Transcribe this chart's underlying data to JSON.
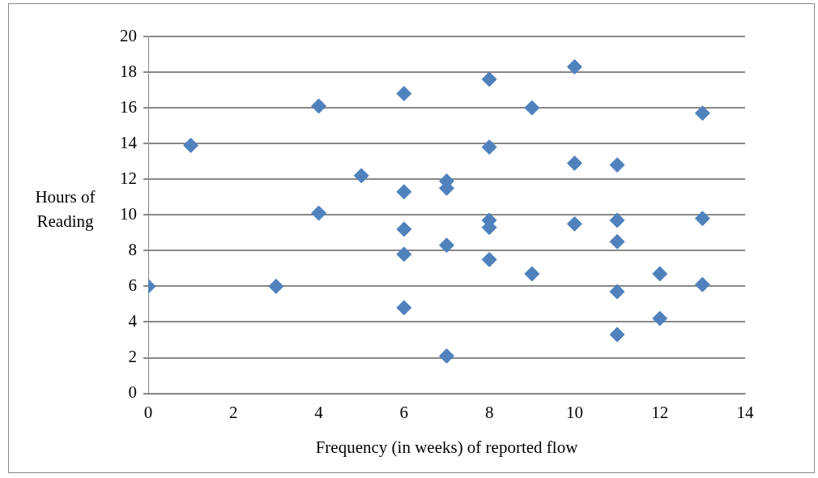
{
  "chart_data": {
    "type": "scatter",
    "xlabel": "Frequency (in weeks) of reported flow",
    "ylabel": "Hours of Reading",
    "x": [
      0,
      1,
      3,
      4,
      4,
      5,
      6,
      6,
      6,
      6,
      6,
      7,
      7,
      7,
      7,
      8,
      8,
      8,
      8,
      8,
      9,
      9,
      10,
      10,
      10,
      11,
      11,
      11,
      11,
      11,
      12,
      12,
      13,
      13,
      13
    ],
    "series": [
      {
        "color": "#4f81bd",
        "values": [
          6.0,
          13.9,
          6.0,
          16.1,
          10.1,
          12.2,
          16.8,
          11.3,
          9.2,
          7.8,
          4.8,
          11.9,
          11.5,
          8.3,
          2.1,
          17.6,
          13.8,
          9.7,
          9.3,
          7.5,
          16.0,
          6.7,
          18.3,
          12.9,
          9.5,
          12.8,
          9.7,
          8.5,
          5.7,
          3.3,
          6.7,
          4.2,
          15.7,
          9.8,
          6.1
        ]
      }
    ],
    "xlim": [
      0,
      14
    ],
    "xticks": [
      0,
      2,
      4,
      6,
      8,
      10,
      12,
      14
    ],
    "ylim": [
      0,
      20
    ],
    "yticks": [
      0,
      2,
      4,
      6,
      8,
      10,
      12,
      14,
      16,
      18,
      20
    ],
    "grid": "y",
    "marker": "diamond",
    "legend": false
  }
}
